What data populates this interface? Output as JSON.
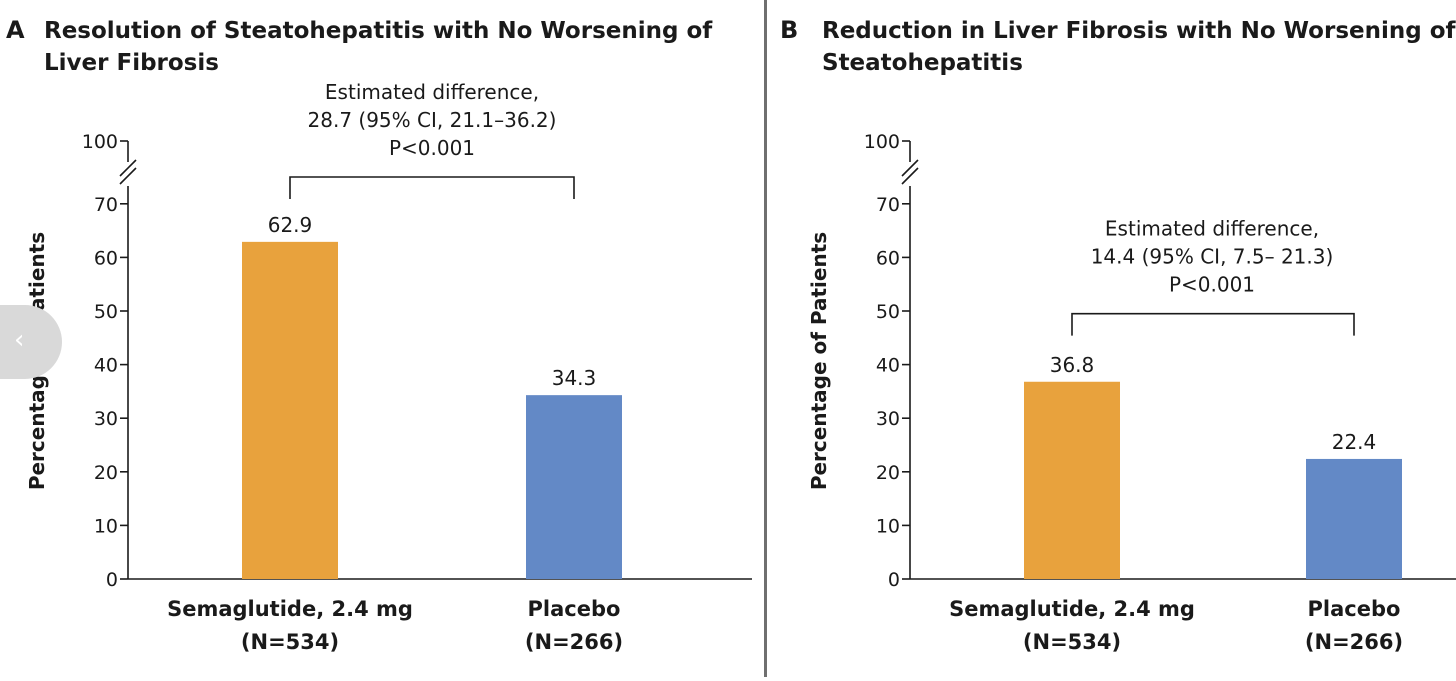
{
  "colors": {
    "semaglutide": "#E8A23D",
    "placebo": "#6389C6",
    "axis": "#1a1a1a"
  },
  "nav": {
    "icon": "chevron-left-icon",
    "glyph": "‹"
  },
  "chart_data": [
    {
      "type": "bar",
      "panel": "A",
      "title": "Resolution of Steatohepatitis with No Worsening of Liver Fibrosis",
      "title_lines": [
        "Resolution of Steatohepatitis with No Worsening of",
        "Liver Fibrosis"
      ],
      "ylabel": "Percentage of Patients",
      "xlabel": "",
      "ylim": [
        0,
        100
      ],
      "axis_break": true,
      "yticks": [
        0,
        10,
        20,
        30,
        40,
        50,
        60,
        70,
        100
      ],
      "categories": [
        {
          "name": "Semaglutide, 2.4 mg",
          "n": "(N=534)"
        },
        {
          "name": "Placebo",
          "n": "(N=266)"
        }
      ],
      "values": [
        62.9,
        34.3
      ],
      "value_labels": [
        "62.9",
        "34.3"
      ],
      "annotation": [
        "Estimated difference,",
        "28.7 (95% CI, 21.1–36.2)",
        "P<0.001"
      ],
      "bracket_level": 75
    },
    {
      "type": "bar",
      "panel": "B",
      "title": "Reduction in Liver Fibrosis with No Worsening of Steatohepatitis",
      "title_lines": [
        "Reduction in Liver Fibrosis with No Worsening of",
        "Steatohepatitis"
      ],
      "ylabel": "Percentage of Patients",
      "xlabel": "",
      "ylim": [
        0,
        100
      ],
      "axis_break": true,
      "yticks": [
        0,
        10,
        20,
        30,
        40,
        50,
        60,
        70,
        100
      ],
      "categories": [
        {
          "name": "Semaglutide, 2.4 mg",
          "n": "(N=534)"
        },
        {
          "name": "Placebo",
          "n": "(N=266)"
        }
      ],
      "values": [
        36.8,
        22.4
      ],
      "value_labels": [
        "36.8",
        "22.4"
      ],
      "annotation": [
        "Estimated difference,",
        "14.4 (95% CI, 7.5– 21.3)",
        "P<0.001"
      ],
      "bracket_level": 49.5
    }
  ]
}
